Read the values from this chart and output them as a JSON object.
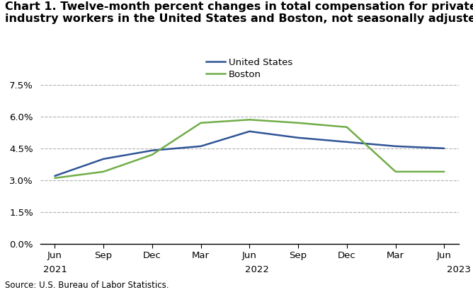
{
  "title_line1": "Chart 1. Twelve-month percent changes in total compensation for private",
  "title_line2": "industry workers in the United States and Boston, not seasonally adjusted",
  "x_month_labels": [
    "Jun",
    "Sep",
    "Dec",
    "Mar",
    "Jun",
    "Sep",
    "Dec",
    "Mar",
    "Jun"
  ],
  "x_year_labels": [
    "2021",
    "",
    "",
    "",
    "2022",
    "",
    "",
    "",
    "2023"
  ],
  "us_data": [
    3.2,
    4.0,
    4.4,
    4.6,
    5.3,
    5.0,
    4.8,
    4.6,
    4.5
  ],
  "boston_data": [
    3.1,
    3.4,
    4.2,
    5.7,
    5.85,
    5.7,
    5.5,
    3.4,
    3.4
  ],
  "us_color": "#2F5496",
  "boston_color": "#70AD47",
  "ylim": [
    0.0,
    7.5
  ],
  "yticks": [
    0.0,
    1.5,
    3.0,
    4.5,
    6.0,
    7.5
  ],
  "ytick_labels": [
    "0.0%",
    "1.5%",
    "3.0%",
    "4.5%",
    "6.0%",
    "7.5%"
  ],
  "legend_labels": [
    "United States",
    "Boston"
  ],
  "source_text": "Source: U.S. Bureau of Labor Statistics.",
  "background_color": "#ffffff",
  "grid_color": "#b0b0b0",
  "title_fontsize": 11.5,
  "axis_fontsize": 9.5,
  "legend_fontsize": 9.5
}
